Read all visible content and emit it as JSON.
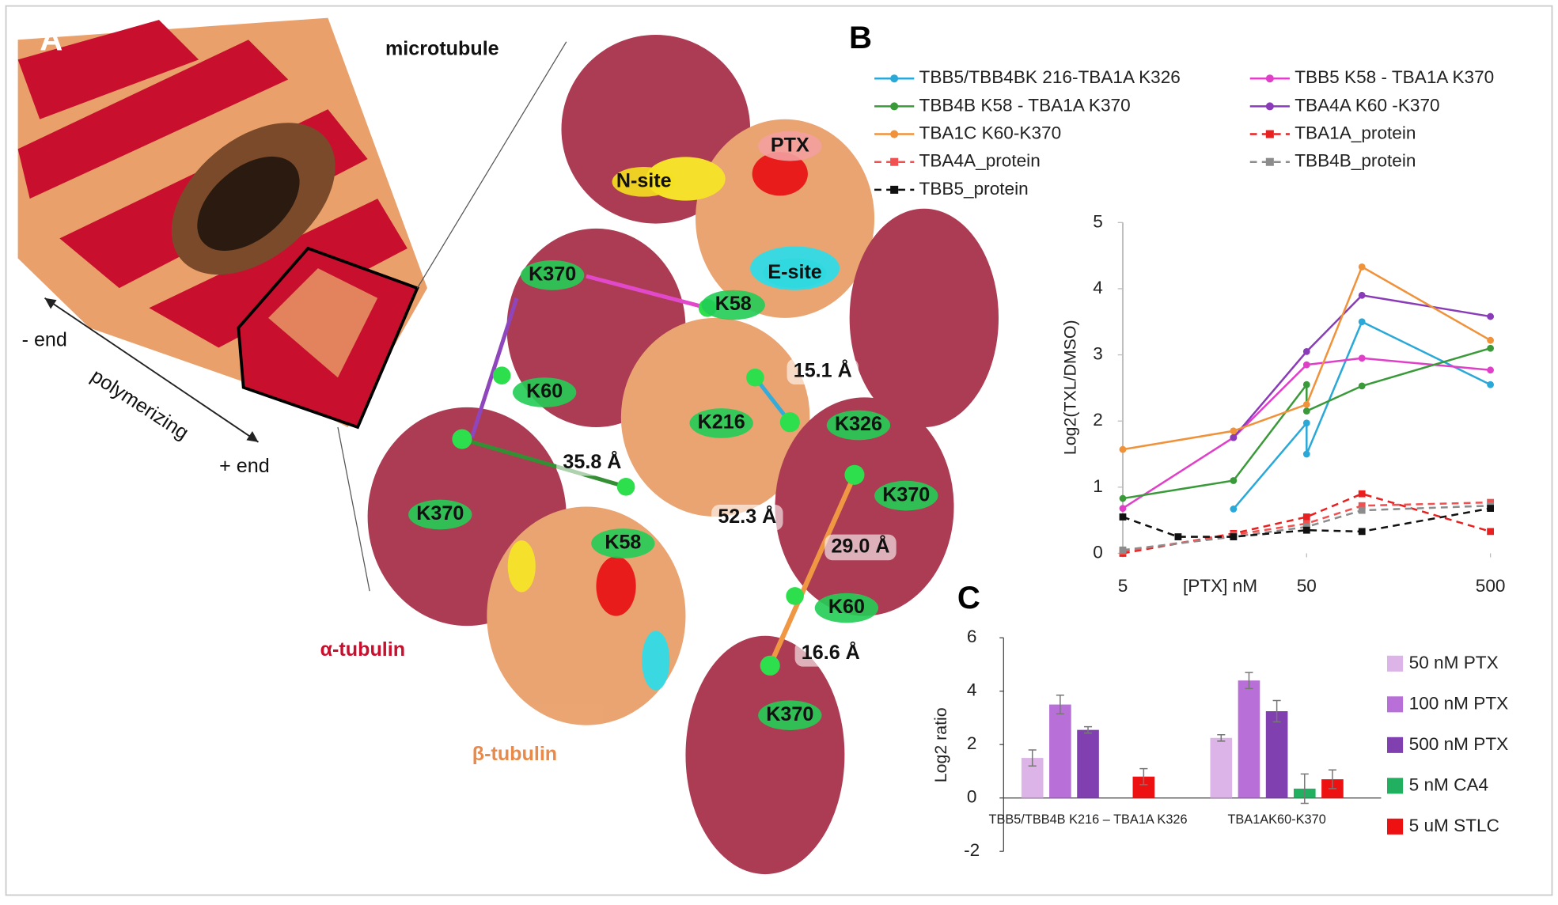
{
  "panel_a": {
    "letter": "A",
    "microtubule": "microtubule",
    "minus_end": "- end",
    "polymerizing": "polymerizing",
    "plus_end": "+ end",
    "alpha": "α-tubulin",
    "beta": "β-tubulin",
    "sites": [
      "N-site",
      "PTX",
      "E-site"
    ],
    "residues": [
      "K370",
      "K58",
      "K60",
      "K216",
      "K326",
      "K370",
      "K370",
      "K58",
      "K60",
      "K370"
    ],
    "distances": [
      "15.1 Å",
      "35.8 Å",
      "52.3 Å",
      "29.0 Å",
      "16.6 Å"
    ]
  },
  "chart_data": [
    {
      "type": "line",
      "panel": "B",
      "y_label": "Log2(TXL/DMSO)",
      "x_label": "[PTX] nM",
      "log_x": true,
      "xlim": [
        5,
        500
      ],
      "xticks": [
        5,
        50,
        500
      ],
      "ylim": [
        0,
        5
      ],
      "yticks": [
        0,
        1,
        2,
        3,
        4,
        5
      ],
      "series": [
        {
          "name": "TBB5/TBB4BK 216-TBA1A K326",
          "color": "#2aa8d8",
          "dashed": false,
          "x": [
            20,
            50,
            50,
            100,
            500
          ],
          "values": [
            0.67,
            1.97,
            1.5,
            3.5,
            2.55
          ]
        },
        {
          "name": "TBB5 K58 - TBA1A K370",
          "color": "#e040c8",
          "dashed": false,
          "x": [
            5,
            20,
            50,
            100,
            500
          ],
          "values": [
            0.68,
            1.75,
            2.85,
            2.95,
            2.77
          ]
        },
        {
          "name": "TBB4B K58 - TBA1A K370",
          "color": "#3a9a3a",
          "dashed": false,
          "x": [
            5,
            20,
            50,
            50,
            100,
            500
          ],
          "values": [
            0.83,
            1.1,
            2.55,
            2.15,
            2.53,
            3.1
          ]
        },
        {
          "name": "TBA4A K60 -K370",
          "color": "#8a3cb8",
          "dashed": false,
          "x": [
            20,
            50,
            100,
            500
          ],
          "values": [
            1.75,
            3.05,
            3.9,
            3.58
          ]
        },
        {
          "name": "TBA1C K60-K370",
          "color": "#f0923a",
          "dashed": false,
          "x": [
            5,
            20,
            50,
            100,
            500
          ],
          "values": [
            1.57,
            1.85,
            2.25,
            4.33,
            3.22
          ]
        },
        {
          "name": "TBA1A_protein",
          "color": "#e82020",
          "dashed": true,
          "x": [
            5,
            20,
            50,
            100,
            500
          ],
          "values": [
            0.0,
            0.3,
            0.55,
            0.9,
            0.33
          ]
        },
        {
          "name": "TBA4A_protein",
          "color": "#f05050",
          "dashed": true,
          "x": [
            5,
            20,
            50,
            100,
            500
          ],
          "values": [
            0.03,
            0.28,
            0.45,
            0.72,
            0.77
          ]
        },
        {
          "name": "TBB4B_protein",
          "color": "#8c8c8c",
          "dashed": true,
          "x": [
            5,
            20,
            50,
            100,
            500
          ],
          "values": [
            0.05,
            0.25,
            0.4,
            0.65,
            0.72
          ]
        },
        {
          "name": "TBB5_protein",
          "color": "#111111",
          "dashed": true,
          "x": [
            5,
            10,
            20,
            50,
            100,
            500
          ],
          "values": [
            0.55,
            0.25,
            0.25,
            0.35,
            0.33,
            0.68
          ]
        }
      ]
    },
    {
      "type": "bar",
      "panel": "C",
      "y_label": "Log2 ratio",
      "ylim": [
        -2,
        6
      ],
      "yticks": [
        -2,
        0,
        2,
        4,
        6
      ],
      "categories": [
        "TBB5/TBB4B K216 – TBA1A K326",
        "TBA1AK60-K370"
      ],
      "series": [
        {
          "name": "50 nM PTX",
          "color": "#dcb4e8",
          "values": [
            1.5,
            2.25
          ],
          "errors": [
            0.3,
            0.12
          ]
        },
        {
          "name": "100 nM PTX",
          "color": "#b86fd8",
          "values": [
            3.5,
            4.4
          ],
          "errors": [
            0.35,
            0.3
          ]
        },
        {
          "name": "500 nM PTX",
          "color": "#8040b0",
          "values": [
            2.55,
            3.25
          ],
          "errors": [
            0.12,
            0.4
          ]
        },
        {
          "name": "5 nM CA4",
          "color": "#20b060",
          "values": [
            null,
            0.35
          ],
          "errors": [
            null,
            0.55
          ]
        },
        {
          "name": "5 uM STLC",
          "color": "#ee1111",
          "values": [
            0.8,
            0.7
          ],
          "errors": [
            0.3,
            0.35
          ]
        }
      ]
    }
  ]
}
